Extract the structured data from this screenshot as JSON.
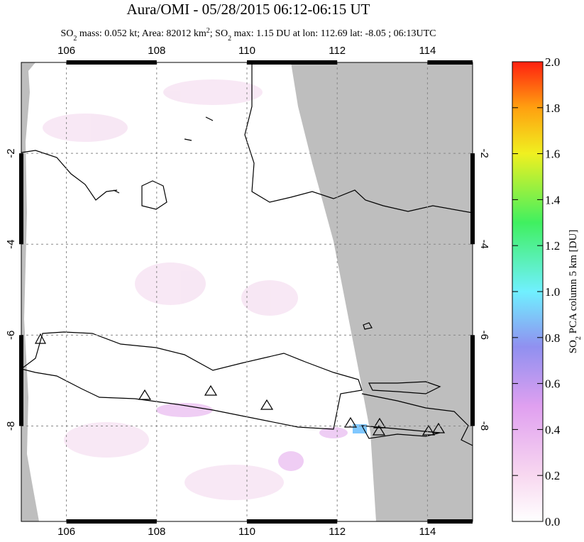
{
  "title": "Aura/OMI - 05/28/2015 06:12-06:15 UT",
  "subtitle_parts": [
    "SO",
    "2",
    " mass: 0.052 kt; Area: 82012 km",
    "2",
    "; SO",
    "2",
    " max: 1.15 DU at lon: 112.69 lat: -8.05 ; 06:13UTC"
  ],
  "map": {
    "xlim": [
      105,
      115
    ],
    "ylim": [
      -10.1,
      0
    ],
    "xticks": [
      106,
      108,
      110,
      112,
      114
    ],
    "yticks": [
      -2,
      -4,
      -6,
      -8
    ]
  },
  "colorbar": {
    "label_parts": [
      "SO",
      "2",
      " PCA column 5 km [DU]"
    ],
    "lim": [
      0,
      2
    ],
    "ticks": [
      {
        "value": 0,
        "label": "0.0"
      },
      {
        "value": 0.2,
        "label": "0.2"
      },
      {
        "value": 0.4,
        "label": "0.4"
      },
      {
        "value": 0.6,
        "label": "0.6"
      },
      {
        "value": 0.8,
        "label": "0.8"
      },
      {
        "value": 1,
        "label": "1.0"
      },
      {
        "value": 1.2,
        "label": "1.2"
      },
      {
        "value": 1.4,
        "label": "1.4"
      },
      {
        "value": 1.6,
        "label": "1.6"
      },
      {
        "value": 1.8,
        "label": "1.8"
      },
      {
        "value": 2,
        "label": "2.0"
      }
    ]
  }
}
